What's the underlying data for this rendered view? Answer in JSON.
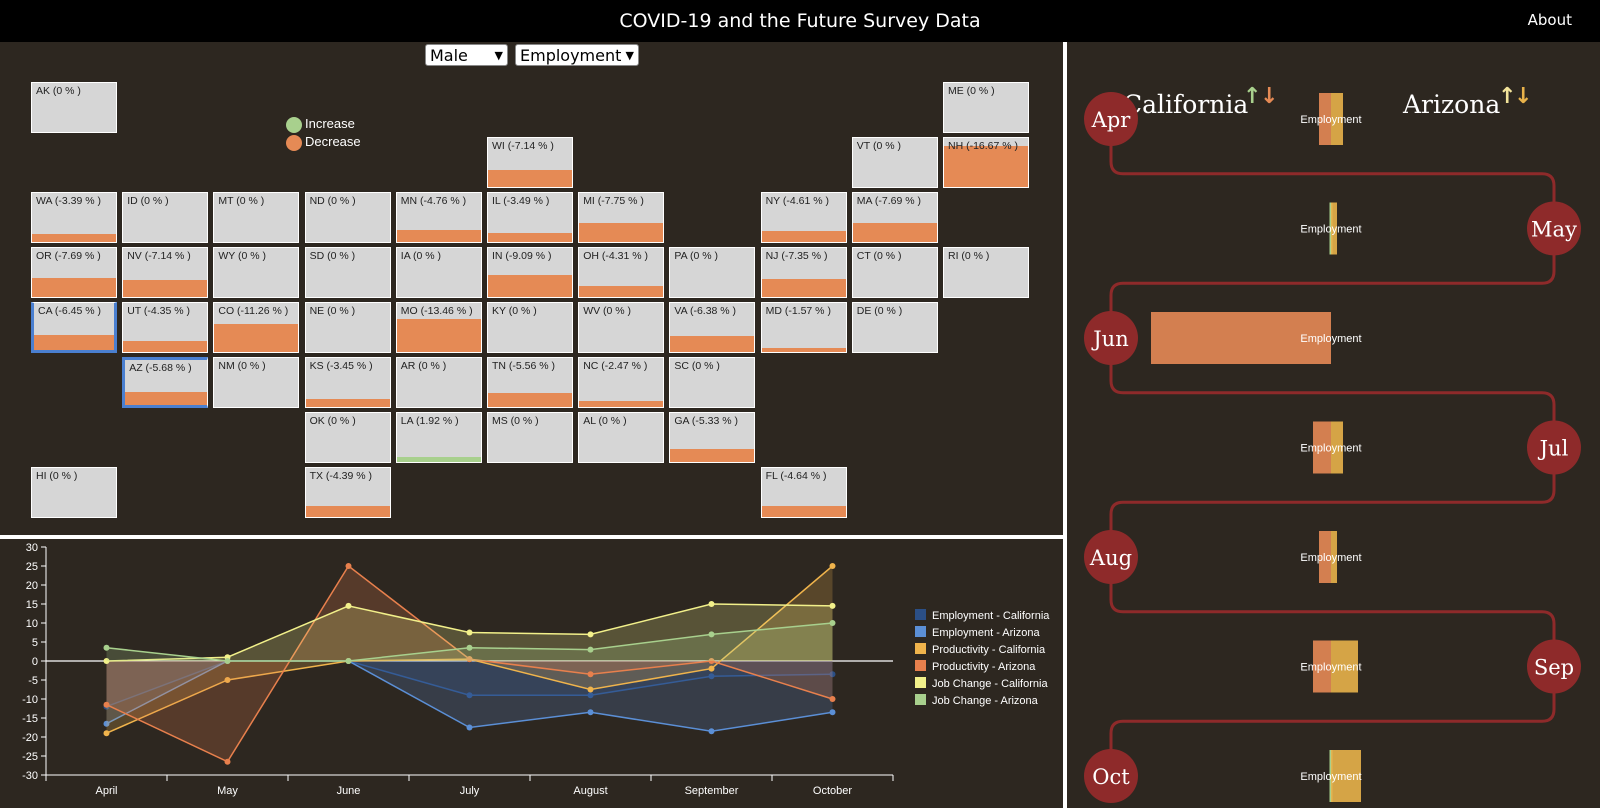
{
  "header": {
    "title": "COVID-19 and the Future Survey Data",
    "about_label": "About"
  },
  "filters": {
    "gender": "Male",
    "metric": "Employment"
  },
  "map_legend": {
    "increase": "Increase",
    "decrease": "Decrease",
    "increase_color": "#a8d08d",
    "decrease_color": "#e58a55"
  },
  "map": {
    "tiles": [
      {
        "label": "AK (0 % )",
        "value": 0,
        "col": 0,
        "row": 0
      },
      {
        "label": "ME (0 % )",
        "value": 0,
        "col": 10,
        "row": 0
      },
      {
        "label": "WI (-7.14 % )",
        "value": -7.14,
        "col": 5,
        "row": 1
      },
      {
        "label": "VT (0 % )",
        "value": 0,
        "col": 9,
        "row": 1
      },
      {
        "label": "NH (-16.67 % )",
        "value": -16.67,
        "col": 10,
        "row": 1
      },
      {
        "label": "WA (-3.39 % )",
        "value": -3.39,
        "col": 0,
        "row": 2
      },
      {
        "label": "ID (0 % )",
        "value": 0,
        "col": 1,
        "row": 2
      },
      {
        "label": "MT (0 % )",
        "value": 0,
        "col": 2,
        "row": 2
      },
      {
        "label": "ND (0 % )",
        "value": 0,
        "col": 3,
        "row": 2
      },
      {
        "label": "MN (-4.76 % )",
        "value": -4.76,
        "col": 4,
        "row": 2
      },
      {
        "label": "IL (-3.49 % )",
        "value": -3.49,
        "col": 5,
        "row": 2
      },
      {
        "label": "MI (-7.75 % )",
        "value": -7.75,
        "col": 6,
        "row": 2
      },
      {
        "label": "NY (-4.61 % )",
        "value": -4.61,
        "col": 8,
        "row": 2
      },
      {
        "label": "MA (-7.69 % )",
        "value": -7.69,
        "col": 9,
        "row": 2
      },
      {
        "label": "OR (-7.69 % )",
        "value": -7.69,
        "col": 0,
        "row": 3
      },
      {
        "label": "NV (-7.14 % )",
        "value": -7.14,
        "col": 1,
        "row": 3
      },
      {
        "label": "WY (0 % )",
        "value": 0,
        "col": 2,
        "row": 3
      },
      {
        "label": "SD (0 % )",
        "value": 0,
        "col": 3,
        "row": 3
      },
      {
        "label": "IA (0 % )",
        "value": 0,
        "col": 4,
        "row": 3
      },
      {
        "label": "IN (-9.09 % )",
        "value": -9.09,
        "col": 5,
        "row": 3
      },
      {
        "label": "OH (-4.31 % )",
        "value": -4.31,
        "col": 6,
        "row": 3
      },
      {
        "label": "PA (0 % )",
        "value": 0,
        "col": 7,
        "row": 3
      },
      {
        "label": "NJ (-7.35 % )",
        "value": -7.35,
        "col": 8,
        "row": 3
      },
      {
        "label": "CT (0 % )",
        "value": 0,
        "col": 9,
        "row": 3
      },
      {
        "label": "RI (0 % )",
        "value": 0,
        "col": 10,
        "row": 3
      },
      {
        "label": "CA (-6.45 % )",
        "value": -6.45,
        "col": 0,
        "row": 4,
        "selected": "left"
      },
      {
        "label": "UT (-4.35 % )",
        "value": -4.35,
        "col": 1,
        "row": 4
      },
      {
        "label": "CO (-11.26 % )",
        "value": -11.26,
        "col": 2,
        "row": 4
      },
      {
        "label": "NE (0 % )",
        "value": 0,
        "col": 3,
        "row": 4
      },
      {
        "label": "MO (-13.46 % )",
        "value": -13.46,
        "col": 4,
        "row": 4
      },
      {
        "label": "KY (0 % )",
        "value": 0,
        "col": 5,
        "row": 4
      },
      {
        "label": "WV (0 % )",
        "value": 0,
        "col": 6,
        "row": 4
      },
      {
        "label": "VA (-6.38 % )",
        "value": -6.38,
        "col": 7,
        "row": 4
      },
      {
        "label": "MD (-1.57 % )",
        "value": -1.57,
        "col": 8,
        "row": 4
      },
      {
        "label": "DE (0 % )",
        "value": 0,
        "col": 9,
        "row": 4
      },
      {
        "label": "AZ (-5.68 % )",
        "value": -5.68,
        "col": 1,
        "row": 5,
        "selected": "right"
      },
      {
        "label": "NM (0 % )",
        "value": 0,
        "col": 2,
        "row": 5
      },
      {
        "label": "KS (-3.45 % )",
        "value": -3.45,
        "col": 3,
        "row": 5
      },
      {
        "label": "AR (0 % )",
        "value": 0,
        "col": 4,
        "row": 5
      },
      {
        "label": "TN (-5.56 % )",
        "value": -5.56,
        "col": 5,
        "row": 5
      },
      {
        "label": "NC (-2.47 % )",
        "value": -2.47,
        "col": 6,
        "row": 5
      },
      {
        "label": "SC (0 % )",
        "value": 0,
        "col": 7,
        "row": 5
      },
      {
        "label": "OK (0 % )",
        "value": 0,
        "col": 3,
        "row": 6
      },
      {
        "label": "LA (1.92 % )",
        "value": 1.92,
        "col": 4,
        "row": 6
      },
      {
        "label": "MS (0 % )",
        "value": 0,
        "col": 5,
        "row": 6
      },
      {
        "label": "AL (0 % )",
        "value": 0,
        "col": 6,
        "row": 6
      },
      {
        "label": "GA (-5.33 % )",
        "value": -5.33,
        "col": 7,
        "row": 6
      },
      {
        "label": "HI (0 % )",
        "value": 0,
        "col": 0,
        "row": 7
      },
      {
        "label": "TX (-4.39 % )",
        "value": -4.39,
        "col": 3,
        "row": 7
      },
      {
        "label": "FL (-4.64 % )",
        "value": -4.64,
        "col": 8,
        "row": 7
      }
    ]
  },
  "timeline": {
    "state_a": "California",
    "state_b": "Arizona",
    "arrow_up": "↑",
    "arrow_down": "↓",
    "state_a_colors": [
      "#a8d08d",
      "#e58a55"
    ],
    "state_b_colors": [
      "#f2e39a",
      "#e8b24a"
    ],
    "metric_label": "Employment",
    "months": [
      {
        "label": "Apr",
        "side": "left",
        "ca": -2,
        "az": 2
      },
      {
        "label": "May",
        "side": "right",
        "ca": 0,
        "az": 1
      },
      {
        "label": "Jun",
        "side": "left",
        "ca": -30,
        "az": 0
      },
      {
        "label": "Jul",
        "side": "right",
        "ca": -3,
        "az": 2
      },
      {
        "label": "Aug",
        "side": "left",
        "ca": -2,
        "az": 1
      },
      {
        "label": "Sep",
        "side": "right",
        "ca": -3,
        "az": 4.5
      },
      {
        "label": "Oct",
        "side": "left",
        "ca": 0,
        "az": 5
      }
    ]
  },
  "chart_data": {
    "type": "line",
    "categories": [
      "April",
      "May",
      "June",
      "July",
      "August",
      "September",
      "October"
    ],
    "ylim": [
      -30,
      30
    ],
    "yticks": [
      30,
      25,
      20,
      15,
      10,
      5,
      0,
      -5,
      -10,
      -15,
      -20,
      -25,
      -30
    ],
    "series": [
      {
        "name": "Employment - California",
        "color": "#2b4f86",
        "values": [
          -12,
          0,
          0,
          -9,
          -9,
          -4,
          -3.5
        ]
      },
      {
        "name": "Employment - Arizona",
        "color": "#5b8fd6",
        "values": [
          -16.5,
          0,
          0,
          -17.5,
          -13.5,
          -18.5,
          -13.5
        ]
      },
      {
        "name": "Productivity - California",
        "color": "#f0b44c",
        "values": [
          -19,
          -5,
          0,
          0.5,
          -7.5,
          -2,
          25
        ]
      },
      {
        "name": "Productivity - Arizona",
        "color": "#e8804d",
        "values": [
          -11.5,
          -26.5,
          25,
          0.5,
          -3.5,
          0,
          -10
        ]
      },
      {
        "name": "Job Change - California",
        "color": "#f2f08a",
        "values": [
          0,
          1,
          14.5,
          7.5,
          7,
          15,
          14.5
        ]
      },
      {
        "name": "Job Change - Arizona",
        "color": "#a8d08d",
        "values": [
          3.5,
          0,
          0,
          3.5,
          3,
          7,
          10
        ]
      }
    ]
  }
}
